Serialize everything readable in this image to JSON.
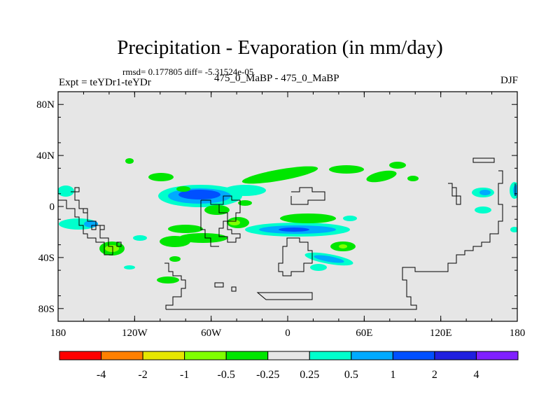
{
  "title": "Precipitation - Evaporation (in mm/day)",
  "stats": "rmsd= 0.177805 diff= -5.31524e-05",
  "expt": "Expt = teYDr1-teYDr",
  "diff_label": "475_0_MaBP - 475_0_MaBP",
  "season": "DJF",
  "map": {
    "background_color": "#e6e6e6",
    "lat_ticks": [
      {
        "value": 80,
        "label": "80N"
      },
      {
        "value": 40,
        "label": "40N"
      },
      {
        "value": 0,
        "label": "0"
      },
      {
        "value": -40,
        "label": "40S"
      },
      {
        "value": -80,
        "label": "80S"
      }
    ],
    "lon_ticks": [
      {
        "value": -180,
        "label": "180"
      },
      {
        "value": -120,
        "label": "120W"
      },
      {
        "value": -60,
        "label": "60W"
      },
      {
        "value": 0,
        "label": "0"
      },
      {
        "value": 60,
        "label": "60E"
      },
      {
        "value": 120,
        "label": "120E"
      },
      {
        "value": 180,
        "label": "180"
      }
    ]
  },
  "colorbar": {
    "colors": [
      "#ff0000",
      "#ff8000",
      "#e6e600",
      "#80ff00",
      "#00e600",
      "#e6e6e6",
      "#00ffcc",
      "#00aaff",
      "#0050ff",
      "#2020e0",
      "#8020ff"
    ],
    "labels": [
      "-4",
      "-2",
      "-1",
      "-0.5",
      "-0.25",
      "0.25",
      "0.5",
      "1",
      "2",
      "4"
    ]
  }
}
